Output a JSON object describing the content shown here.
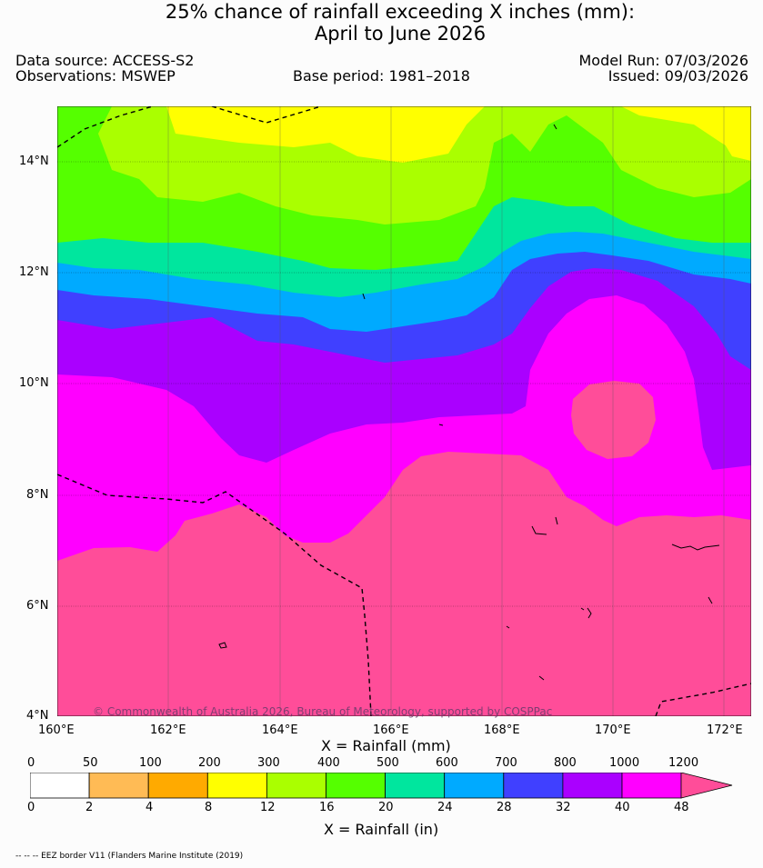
{
  "title_line1": "25% chance of rainfall exceeding X inches (mm):",
  "title_line2": "April to June 2026",
  "data_source": "Data source: ACCESS-S2",
  "observations": "Observations: MSWEP",
  "base_period": "Base period: 1981–2018",
  "model_run": "Model Run: 07/03/2026",
  "issued": "Issued: 09/03/2026",
  "copyright": "© Commonwealth of Australia 2026, Bureau of Meteorology, supported by COSPPac",
  "lat_ticks": [
    "14°N",
    "12°N",
    "10°N",
    "8°N",
    "6°N",
    "4°N"
  ],
  "lon_ticks": [
    "160°E",
    "162°E",
    "164°E",
    "166°E",
    "168°E",
    "170°E",
    "172°E"
  ],
  "x_label_mm": "X = Rainfall (mm)",
  "x_label_in": "X = Rainfall (in)",
  "colorbar": {
    "mm_ticks": [
      "0",
      "50",
      "100",
      "200",
      "300",
      "400",
      "500",
      "600",
      "700",
      "800",
      "1000",
      "1200"
    ],
    "in_ticks": [
      "0",
      "2",
      "4",
      "8",
      "12",
      "16",
      "20",
      "24",
      "28",
      "32",
      "40",
      "48"
    ],
    "colors": [
      "#ffffff",
      "#ffbb55",
      "#ffaa00",
      "#ffff00",
      "#aaff00",
      "#55ff00",
      "#00e69e",
      "#00aaff",
      "#4040ff",
      "#aa00ff",
      "#ff00ff",
      "#ff4d99"
    ]
  },
  "footnote": "-- -- -- EEZ border V11 (Flanders Marine Institute (2019)"
}
